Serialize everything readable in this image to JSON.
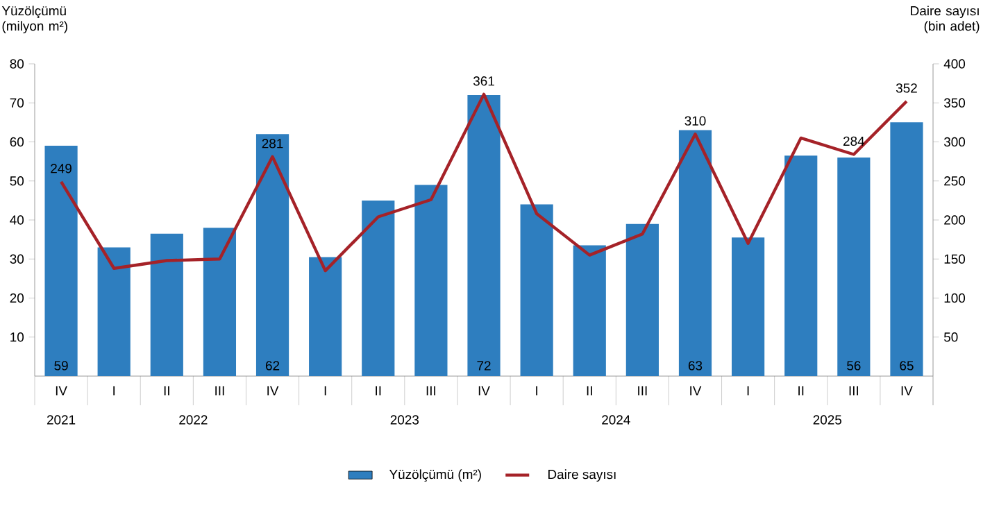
{
  "chart_data": {
    "type": "bar",
    "ylabel": "Yüzölçümü (milyon m²)",
    "y2label": "Daire sayısı (bin adet)",
    "categories": [
      "IV",
      "I",
      "II",
      "III",
      "IV",
      "I",
      "II",
      "III",
      "IV",
      "I",
      "II",
      "III",
      "IV",
      "I",
      "II",
      "III",
      "IV"
    ],
    "annotations": [
      "2021",
      "2022",
      "2023",
      "2024",
      "2025"
    ],
    "series": [
      {
        "name": "Yüzölçümü (m²)",
        "color": "#2e7ebf",
        "values": [
          59,
          33,
          36.5,
          38,
          62,
          30.5,
          45,
          49,
          72,
          44,
          33.5,
          39,
          63,
          35.5,
          56.5,
          56,
          65
        ],
        "value_labels": [
          "59",
          null,
          null,
          null,
          "62",
          null,
          null,
          null,
          "72",
          null,
          null,
          null,
          "63",
          null,
          null,
          "56",
          "65"
        ]
      },
      {
        "name": "Daire sayısı",
        "type": "line",
        "axis": "y2",
        "color": "#a52228",
        "values": [
          249,
          138,
          148,
          150,
          281,
          135,
          204,
          226,
          361,
          208,
          155,
          182,
          310,
          170,
          305,
          284,
          352
        ],
        "value_labels": [
          "249",
          null,
          null,
          null,
          "281",
          null,
          null,
          null,
          "361",
          null,
          null,
          null,
          "310",
          null,
          null,
          "284",
          "352"
        ]
      }
    ],
    "ylim": [
      0,
      80
    ],
    "yticks": [
      10,
      20,
      30,
      40,
      50,
      60,
      70,
      80
    ],
    "y2lim": [
      0,
      400
    ],
    "y2ticks": [
      50,
      100,
      150,
      200,
      250,
      300,
      350,
      400
    ],
    "legend": "bottom",
    "grid": false
  }
}
